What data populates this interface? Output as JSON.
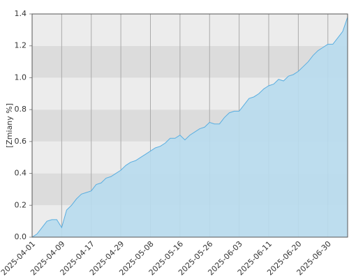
{
  "chart_data": {
    "type": "area",
    "y_label": "[Zmiany %]",
    "categories": [
      "2025-04-01",
      null,
      null,
      null,
      null,
      null,
      "2025-04-09",
      null,
      null,
      null,
      null,
      null,
      "2025-04-17",
      null,
      null,
      null,
      null,
      null,
      "2025-04-29",
      null,
      null,
      null,
      null,
      null,
      "2025-05-08",
      null,
      null,
      null,
      null,
      null,
      "2025-05-16",
      null,
      null,
      null,
      null,
      null,
      "2025-05-26",
      null,
      null,
      null,
      null,
      null,
      "2025-06-03",
      null,
      null,
      null,
      null,
      null,
      "2025-06-11",
      null,
      null,
      null,
      null,
      null,
      "2025-06-20",
      null,
      null,
      null,
      null,
      null,
      "2025-06-30",
      null,
      null,
      null,
      null
    ],
    "values": [
      0.0,
      0.02,
      0.06,
      0.1,
      0.11,
      0.11,
      0.06,
      0.17,
      0.2,
      0.24,
      0.27,
      0.28,
      0.29,
      0.33,
      0.34,
      0.37,
      0.38,
      0.4,
      0.42,
      0.45,
      0.47,
      0.48,
      0.5,
      0.52,
      0.54,
      0.56,
      0.57,
      0.59,
      0.62,
      0.62,
      0.64,
      0.61,
      0.64,
      0.66,
      0.68,
      0.69,
      0.72,
      0.71,
      0.71,
      0.75,
      0.78,
      0.79,
      0.79,
      0.83,
      0.87,
      0.88,
      0.9,
      0.93,
      0.95,
      0.96,
      0.99,
      0.98,
      1.01,
      1.02,
      1.04,
      1.07,
      1.1,
      1.14,
      1.17,
      1.19,
      1.21,
      1.21,
      1.25,
      1.29,
      1.38
    ],
    "color": "#5aaee0",
    "fill": "#b8dcee",
    "ylim": [
      0,
      1.4
    ],
    "yticks": [
      {
        "value": 0,
        "label": "0.0"
      },
      0.2,
      0.4,
      0.6,
      0.8,
      {
        "value": 1,
        "label": "1.0"
      },
      1.2,
      1.4
    ],
    "band_colors": [
      "#ececec",
      "#dcdcdc"
    ],
    "grid": true
  }
}
